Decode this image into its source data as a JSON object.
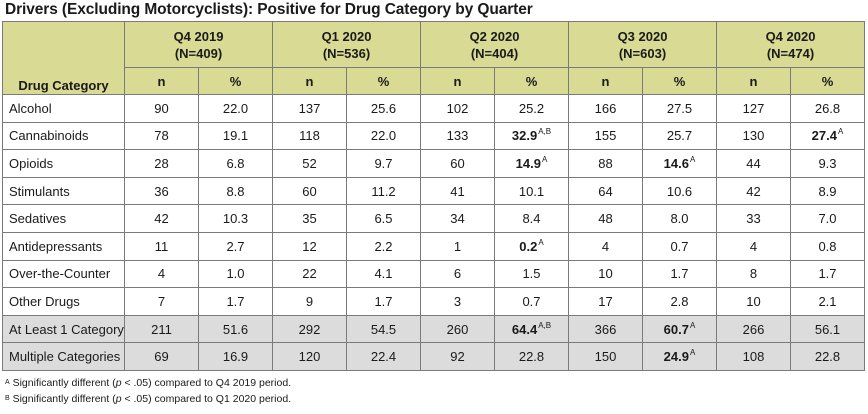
{
  "title": "Drivers (Excluding Motorcyclists): Positive for Drug Category by Quarter",
  "header": {
    "category_label": "Drug Category",
    "n_label": "n",
    "pct_label": "%",
    "periods": [
      {
        "name": "Q4 2019",
        "n": "(N=409)"
      },
      {
        "name": "Q1 2020",
        "n": "(N=536)"
      },
      {
        "name": "Q2 2020",
        "n": "(N=404)"
      },
      {
        "name": "Q3 2020",
        "n": "(N=603)"
      },
      {
        "name": "Q4 2020",
        "n": "(N=474)"
      }
    ]
  },
  "rows": [
    {
      "label": "Alcohol",
      "cells": [
        {
          "n": "90",
          "pct": "22.0"
        },
        {
          "n": "137",
          "pct": "25.6"
        },
        {
          "n": "102",
          "pct": "25.2"
        },
        {
          "n": "166",
          "pct": "27.5"
        },
        {
          "n": "127",
          "pct": "26.8"
        }
      ]
    },
    {
      "label": "Cannabinoids",
      "cells": [
        {
          "n": "78",
          "pct": "19.1"
        },
        {
          "n": "118",
          "pct": "22.0"
        },
        {
          "n": "133",
          "pct": "32.9",
          "bold": true,
          "sup": "A,B"
        },
        {
          "n": "155",
          "pct": "25.7"
        },
        {
          "n": "130",
          "pct": "27.4",
          "bold": true,
          "sup": "A"
        }
      ]
    },
    {
      "label": "Opioids",
      "cells": [
        {
          "n": "28",
          "pct": "6.8"
        },
        {
          "n": "52",
          "pct": "9.7"
        },
        {
          "n": "60",
          "pct": "14.9",
          "bold": true,
          "sup": "A"
        },
        {
          "n": "88",
          "pct": "14.6",
          "bold": true,
          "sup": "A"
        },
        {
          "n": "44",
          "pct": "9.3"
        }
      ]
    },
    {
      "label": "Stimulants",
      "cells": [
        {
          "n": "36",
          "pct": "8.8"
        },
        {
          "n": "60",
          "pct": "11.2"
        },
        {
          "n": "41",
          "pct": "10.1"
        },
        {
          "n": "64",
          "pct": "10.6"
        },
        {
          "n": "42",
          "pct": "8.9"
        }
      ]
    },
    {
      "label": "Sedatives",
      "cells": [
        {
          "n": "42",
          "pct": "10.3"
        },
        {
          "n": "35",
          "pct": "6.5"
        },
        {
          "n": "34",
          "pct": "8.4"
        },
        {
          "n": "48",
          "pct": "8.0"
        },
        {
          "n": "33",
          "pct": "7.0"
        }
      ]
    },
    {
      "label": "Antidepressants",
      "cells": [
        {
          "n": "11",
          "pct": "2.7"
        },
        {
          "n": "12",
          "pct": "2.2"
        },
        {
          "n": "1",
          "pct": "0.2",
          "bold": true,
          "sup": "A"
        },
        {
          "n": "4",
          "pct": "0.7"
        },
        {
          "n": "4",
          "pct": "0.8"
        }
      ]
    },
    {
      "label": "Over-the-Counter",
      "cells": [
        {
          "n": "4",
          "pct": "1.0"
        },
        {
          "n": "22",
          "pct": "4.1"
        },
        {
          "n": "6",
          "pct": "1.5"
        },
        {
          "n": "10",
          "pct": "1.7"
        },
        {
          "n": "8",
          "pct": "1.7"
        }
      ]
    },
    {
      "label": "Other Drugs",
      "cells": [
        {
          "n": "7",
          "pct": "1.7"
        },
        {
          "n": "9",
          "pct": "1.7"
        },
        {
          "n": "3",
          "pct": "0.7"
        },
        {
          "n": "17",
          "pct": "2.8"
        },
        {
          "n": "10",
          "pct": "2.1"
        }
      ]
    },
    {
      "label": "At Least 1 Category",
      "shaded": true,
      "cells": [
        {
          "n": "211",
          "pct": "51.6"
        },
        {
          "n": "292",
          "pct": "54.5"
        },
        {
          "n": "260",
          "pct": "64.4",
          "bold": true,
          "sup": "A,B"
        },
        {
          "n": "366",
          "pct": "60.7",
          "bold": true,
          "sup": "A"
        },
        {
          "n": "266",
          "pct": "56.1"
        }
      ]
    },
    {
      "label": "Multiple Categories",
      "shaded": true,
      "cells": [
        {
          "n": "69",
          "pct": "16.9"
        },
        {
          "n": "120",
          "pct": "22.4"
        },
        {
          "n": "92",
          "pct": "22.8"
        },
        {
          "n": "150",
          "pct": "24.9",
          "bold": true,
          "sup": "A"
        },
        {
          "n": "108",
          "pct": "22.8"
        }
      ]
    }
  ],
  "footnotes": [
    {
      "mark": "A",
      "pre": "Significantly different (",
      "p": "p",
      "post": " < .05) compared to Q4 2019 period."
    },
    {
      "mark": "B",
      "pre": "Significantly different (",
      "p": "p",
      "post": " < .05) compared to Q1 2020 period."
    }
  ]
}
